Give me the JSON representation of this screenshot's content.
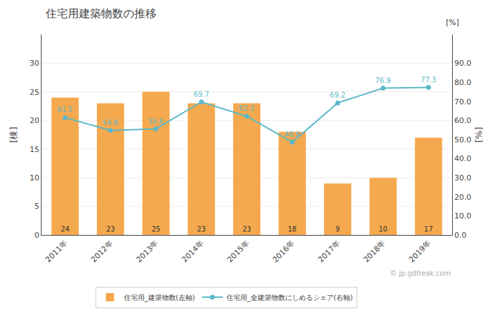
{
  "chart_data": {
    "type": "bar",
    "title": "住宅用建築物数の推移",
    "categories": [
      "2011年",
      "2012年",
      "2013年",
      "2014年",
      "2015年",
      "2016年",
      "2017年",
      "2018年",
      "2019年"
    ],
    "series": [
      {
        "name": "住宅用_建築物数(左軸)",
        "type": "bar",
        "color": "#F5A94E",
        "values": [
          24,
          23,
          25,
          23,
          23,
          18,
          9,
          10,
          17
        ],
        "data_labels": true
      },
      {
        "name": "住宅用_全建築物数にしめるシェア(右軸)",
        "type": "line",
        "color": "#5BB8C8",
        "axis": "y2",
        "marker": "circle",
        "values": [
          61.5,
          54.8,
          55.6,
          69.7,
          62.2,
          48.6,
          69.2,
          76.9,
          77.3
        ],
        "data_labels": true
      }
    ],
    "ylabel": "[棟]",
    "y2label": "[%]",
    "ylim": [
      0,
      35
    ],
    "yticks": [
      0,
      5,
      10,
      15,
      20,
      25,
      30
    ],
    "y2lim": [
      0,
      105
    ],
    "y2ticks": [
      {
        "value": 0.0,
        "label": "0.0"
      },
      {
        "value": 10.0,
        "label": "10.0"
      },
      {
        "value": 20.0,
        "label": "20.0"
      },
      {
        "value": 30.0,
        "label": "30.0"
      },
      {
        "value": 40.0,
        "label": "40.0"
      },
      {
        "value": 50.0,
        "label": "50.0"
      },
      {
        "value": 60.0,
        "label": "60.0"
      },
      {
        "value": 70.0,
        "label": "70.0"
      },
      {
        "value": 80.0,
        "label": "80.0"
      },
      {
        "value": 90.0,
        "label": "90.0"
      }
    ],
    "grid": true,
    "legend": "bottom",
    "annotations": [
      "[%]",
      "© jp.gdfreak.com"
    ]
  }
}
